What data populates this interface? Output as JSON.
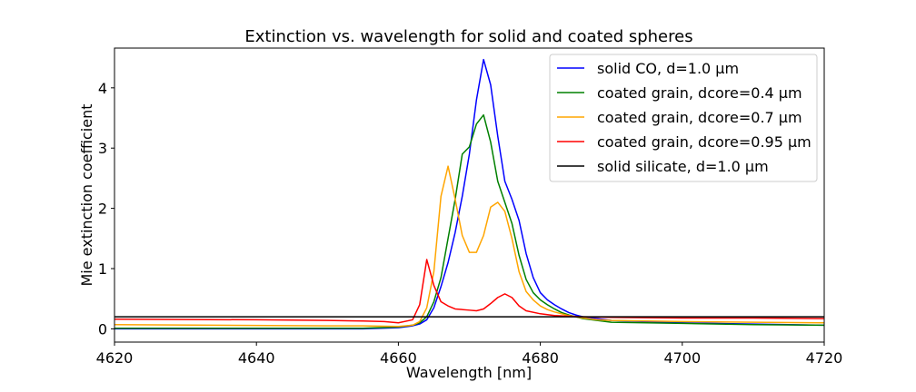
{
  "chart_data": {
    "type": "line",
    "title": "Extinction vs. wavelength for solid and coated spheres",
    "xlabel": "Wavelength [nm]",
    "ylabel": "Mie extinction coefficient",
    "xlim": [
      4620,
      4720
    ],
    "ylim": [
      -0.22,
      4.66
    ],
    "xticks": [
      4620,
      4640,
      4660,
      4680,
      4700,
      4720
    ],
    "xtick_labels": [
      "4620",
      "4640",
      "4660",
      "4680",
      "4700",
      "4720"
    ],
    "yticks": [
      0,
      1,
      2,
      3,
      4
    ],
    "ytick_labels": [
      "0",
      "1",
      "2",
      "3",
      "4"
    ],
    "grid": false,
    "legend_position": "top-right",
    "series": [
      {
        "name": "solid CO, d=1.0 μm",
        "color": "#0000ff",
        "x": [
          4620,
          4650,
          4655,
          4660,
          4662,
          4663,
          4664,
          4665,
          4666,
          4667,
          4668,
          4669,
          4670,
          4671,
          4672,
          4673,
          4674,
          4675,
          4676,
          4677,
          4678,
          4679,
          4680,
          4681,
          4682,
          4683,
          4684,
          4685,
          4686,
          4688,
          4690,
          4700,
          4710,
          4720
        ],
        "y": [
          0.0,
          0.0,
          0.0,
          0.02,
          0.05,
          0.08,
          0.15,
          0.35,
          0.7,
          1.1,
          1.6,
          2.2,
          2.9,
          3.8,
          4.47,
          4.05,
          3.2,
          2.45,
          2.15,
          1.8,
          1.25,
          0.85,
          0.6,
          0.48,
          0.4,
          0.33,
          0.27,
          0.23,
          0.2,
          0.17,
          0.14,
          0.1,
          0.08,
          0.06
        ]
      },
      {
        "name": "coated grain, dcore=0.4 μm",
        "color": "#008000",
        "x": [
          4620,
          4650,
          4655,
          4660,
          4662,
          4663,
          4664,
          4665,
          4666,
          4667,
          4668,
          4669,
          4670,
          4671,
          4672,
          4673,
          4674,
          4675,
          4676,
          4677,
          4678,
          4679,
          4680,
          4681,
          4682,
          4683,
          4684,
          4685,
          4686,
          4688,
          4690,
          4700,
          4710,
          4720
        ],
        "y": [
          0.01,
          0.01,
          0.01,
          0.03,
          0.06,
          0.1,
          0.2,
          0.45,
          0.85,
          1.5,
          2.15,
          2.9,
          3.02,
          3.4,
          3.55,
          3.1,
          2.45,
          2.1,
          1.75,
          1.22,
          0.82,
          0.6,
          0.48,
          0.4,
          0.33,
          0.27,
          0.23,
          0.2,
          0.17,
          0.14,
          0.11,
          0.09,
          0.07,
          0.06
        ]
      },
      {
        "name": "coated grain, dcore=0.7 μm",
        "color": "#ffa500",
        "x": [
          4620,
          4650,
          4655,
          4660,
          4662,
          4663,
          4664,
          4665,
          4666,
          4667,
          4668,
          4669,
          4670,
          4671,
          4672,
          4673,
          4674,
          4675,
          4676,
          4677,
          4678,
          4679,
          4680,
          4681,
          4682,
          4683,
          4684,
          4685,
          4686,
          4688,
          4690,
          4700,
          4710,
          4720
        ],
        "y": [
          0.07,
          0.05,
          0.05,
          0.04,
          0.06,
          0.12,
          0.35,
          0.95,
          2.2,
          2.7,
          2.15,
          1.55,
          1.27,
          1.27,
          1.55,
          2.02,
          2.1,
          1.95,
          1.5,
          0.95,
          0.62,
          0.48,
          0.38,
          0.32,
          0.28,
          0.25,
          0.22,
          0.2,
          0.18,
          0.15,
          0.14,
          0.12,
          0.11,
          0.1
        ]
      },
      {
        "name": "coated grain, dcore=0.95 μm",
        "color": "#ff0000",
        "x": [
          4620,
          4640,
          4650,
          4655,
          4658,
          4660,
          4662,
          4663,
          4664,
          4665,
          4666,
          4667,
          4668,
          4670,
          4671,
          4672,
          4673,
          4674,
          4675,
          4676,
          4677,
          4678,
          4680,
          4682,
          4684,
          4686,
          4690,
          4700,
          4710,
          4720
        ],
        "y": [
          0.16,
          0.15,
          0.14,
          0.13,
          0.12,
          0.1,
          0.15,
          0.4,
          1.15,
          0.72,
          0.45,
          0.38,
          0.33,
          0.31,
          0.3,
          0.33,
          0.42,
          0.52,
          0.58,
          0.52,
          0.38,
          0.3,
          0.25,
          0.22,
          0.21,
          0.2,
          0.19,
          0.18,
          0.18,
          0.17
        ]
      },
      {
        "name": "solid silicate, d=1.0 μm",
        "color": "#000000",
        "x": [
          4620,
          4660,
          4680,
          4700,
          4720
        ],
        "y": [
          0.2,
          0.2,
          0.2,
          0.2,
          0.2
        ]
      }
    ]
  }
}
